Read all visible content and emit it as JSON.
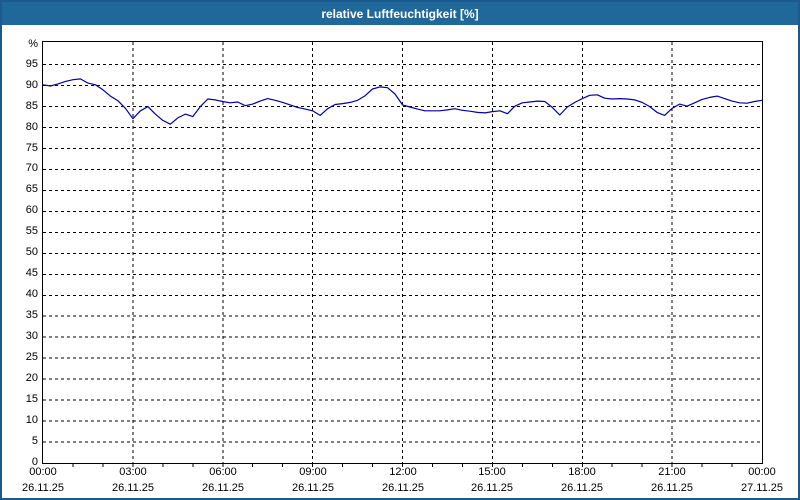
{
  "title": "relative Luftfeuchtigkeit [%]",
  "colors": {
    "titlebar": "#20689a",
    "window_border": "#1a5a8c",
    "plot_background": "#ffffff",
    "gridline": "#000000",
    "line": "#0000a0",
    "text": "#000000"
  },
  "chart_data": {
    "type": "line",
    "title": "relative Luftfeuchtigkeit [%]",
    "xlabel": "",
    "ylabel": "%",
    "ylim": [
      0,
      100.4
    ],
    "xlim_hours": [
      0,
      24
    ],
    "grid": "dashed black, horizontal every 5 units, vertical every 3 hours",
    "legend": "none",
    "x_minor_tick_every_hours": 1,
    "y_ticks": [
      0,
      5,
      10,
      15,
      20,
      25,
      30,
      35,
      40,
      45,
      50,
      55,
      60,
      65,
      70,
      75,
      80,
      85,
      90,
      95
    ],
    "x_ticks": [
      {
        "hour": 0,
        "time": "00:00",
        "date": "26.11.25"
      },
      {
        "hour": 3,
        "time": "03:00",
        "date": "26.11.25"
      },
      {
        "hour": 6,
        "time": "06:00",
        "date": "26.11.25"
      },
      {
        "hour": 9,
        "time": "09:00",
        "date": "26.11.25"
      },
      {
        "hour": 12,
        "time": "12:00",
        "date": "26.11.25"
      },
      {
        "hour": 15,
        "time": "15:00",
        "date": "26.11.25"
      },
      {
        "hour": 18,
        "time": "18:00",
        "date": "26.11.25"
      },
      {
        "hour": 21,
        "time": "21:00",
        "date": "26.11.25"
      },
      {
        "hour": 24,
        "time": "00:00",
        "date": "27.11.25"
      }
    ],
    "series": [
      {
        "name": "relative Luftfeuchtigkeit",
        "color": "#0000a0",
        "x_start_hour": 0,
        "x_step_hours": 0.25,
        "values": [
          90.2,
          89.9,
          90.4,
          91.0,
          91.4,
          91.6,
          90.6,
          90.2,
          89.0,
          87.5,
          86.4,
          84.6,
          82.1,
          84.0,
          85.0,
          83.2,
          81.7,
          80.8,
          82.3,
          83.2,
          82.6,
          85.0,
          86.8,
          86.6,
          86.2,
          85.9,
          86.1,
          85.2,
          85.6,
          86.3,
          86.9,
          86.5,
          86.0,
          85.4,
          84.8,
          84.4,
          84.0,
          82.9,
          84.5,
          85.5,
          85.7,
          86.0,
          86.5,
          87.6,
          89.2,
          89.7,
          89.5,
          88.0,
          85.4,
          84.9,
          84.4,
          84.0,
          84.0,
          84.0,
          84.2,
          84.5,
          84.1,
          83.9,
          83.6,
          83.5,
          83.8,
          84.0,
          83.3,
          85.1,
          85.9,
          86.1,
          86.3,
          86.2,
          84.8,
          83.0,
          84.9,
          86.0,
          86.9,
          87.7,
          87.8,
          87.0,
          86.8,
          86.9,
          86.8,
          86.6,
          86.0,
          85.0,
          83.6,
          82.9,
          84.6,
          85.6,
          85.1,
          85.9,
          86.7,
          87.2,
          87.5,
          86.9,
          86.3,
          85.9,
          85.8,
          86.2,
          86.5
        ]
      }
    ]
  }
}
